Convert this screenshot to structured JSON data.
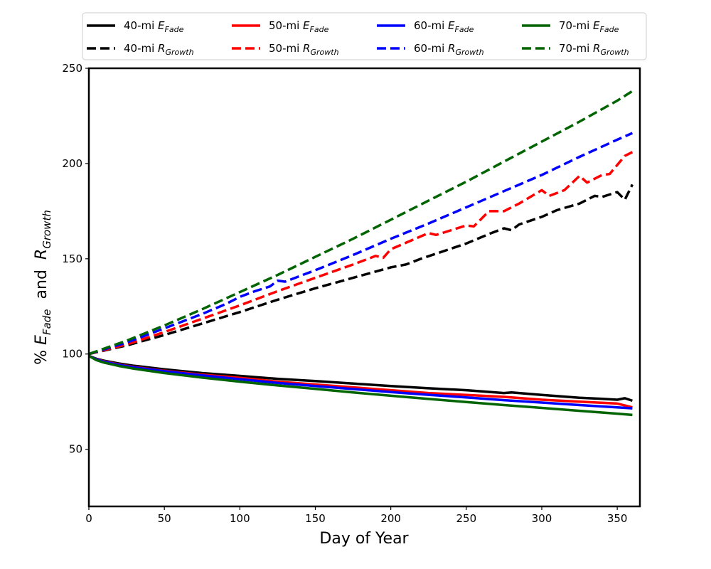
{
  "chart_data": {
    "type": "line",
    "xlabel": "Day of Year",
    "ylabel_parts": {
      "prefix": "% ",
      "e_main": "E",
      "e_sub": "Fade",
      "joiner": "  and  ",
      "r_main": "R",
      "r_sub": "Growth"
    },
    "xlim": [
      0,
      365
    ],
    "ylim": [
      20,
      250
    ],
    "x_ticks": [
      0,
      50,
      100,
      150,
      200,
      250,
      300,
      350
    ],
    "y_ticks": [
      50,
      100,
      150,
      200,
      250
    ],
    "grid": false,
    "legend_placement": "top-center, above plot, 4 columns",
    "series": [
      {
        "name": "40-mi E_Fade",
        "label_main": "40-mi ",
        "label_var": "E",
        "label_sub": "Fade",
        "color": "#000000",
        "dash": "solid",
        "x": [
          0,
          5,
          10,
          20,
          30,
          50,
          75,
          100,
          125,
          150,
          175,
          200,
          225,
          250,
          275,
          280,
          300,
          325,
          340,
          350,
          355,
          360
        ],
        "y": [
          99,
          97.5,
          96.5,
          95,
          93.8,
          92,
          90,
          88.5,
          87,
          85.8,
          84.5,
          83.2,
          82,
          81,
          79.5,
          79.8,
          78.5,
          77,
          76.5,
          76,
          76.8,
          75.5
        ]
      },
      {
        "name": "40-mi R_Growth",
        "label_main": "40-mi ",
        "label_var": "R",
        "label_sub": "Growth",
        "color": "#000000",
        "dash": "dashed",
        "x": [
          0,
          25,
          50,
          75,
          100,
          125,
          150,
          175,
          200,
          210,
          220,
          250,
          265,
          275,
          280,
          285,
          300,
          310,
          325,
          335,
          340,
          350,
          355,
          360
        ],
        "y": [
          100,
          104.5,
          110,
          116,
          122,
          128.5,
          134.5,
          140,
          145.5,
          147,
          150,
          158,
          163,
          166,
          165,
          168,
          172,
          175.5,
          179,
          183,
          182.5,
          185,
          181,
          189
        ]
      },
      {
        "name": "50-mi E_Fade",
        "label_main": "50-mi ",
        "label_var": "E",
        "label_sub": "Fade",
        "color": "#ff0000",
        "dash": "solid",
        "x": [
          0,
          5,
          10,
          20,
          30,
          50,
          75,
          100,
          125,
          150,
          175,
          200,
          225,
          250,
          275,
          300,
          325,
          350,
          360
        ],
        "y": [
          99,
          97.3,
          96.2,
          94.5,
          93.2,
          91.2,
          89.2,
          87.5,
          85.5,
          84,
          82.5,
          81,
          79.5,
          78.5,
          77.5,
          76,
          75,
          74,
          72
        ]
      },
      {
        "name": "50-mi R_Growth",
        "label_main": "50-mi ",
        "label_var": "R",
        "label_sub": "Growth",
        "color": "#ff0000",
        "dash": "dashed",
        "x": [
          0,
          25,
          50,
          75,
          100,
          125,
          150,
          175,
          190,
          195,
          200,
          225,
          230,
          250,
          255,
          265,
          275,
          285,
          300,
          305,
          315,
          325,
          330,
          340,
          345,
          355,
          360
        ],
        "y": [
          100,
          105,
          111.5,
          118.5,
          125.5,
          133,
          140,
          147,
          151.5,
          150.5,
          155,
          163.5,
          162.5,
          167.5,
          167,
          175,
          175,
          179,
          186,
          183,
          186,
          193.5,
          190,
          194,
          194.5,
          204,
          206
        ]
      },
      {
        "name": "60-mi E_Fade",
        "label_main": "60-mi ",
        "label_var": "E",
        "label_sub": "Fade",
        "color": "#0000ff",
        "dash": "solid",
        "x": [
          0,
          5,
          10,
          20,
          30,
          50,
          75,
          100,
          125,
          150,
          175,
          200,
          225,
          250,
          275,
          300,
          325,
          350,
          360
        ],
        "y": [
          99,
          97.2,
          96,
          94.3,
          93,
          91,
          88.8,
          86.8,
          84.8,
          83.2,
          81.6,
          80,
          78.6,
          77.2,
          75.8,
          74.5,
          73.2,
          72,
          71.5
        ]
      },
      {
        "name": "60-mi R_Growth",
        "label_main": "60-mi ",
        "label_var": "R",
        "label_sub": "Growth",
        "color": "#0000ff",
        "dash": "dashed",
        "x": [
          0,
          25,
          50,
          75,
          90,
          100,
          110,
          120,
          125,
          130,
          150,
          175,
          200,
          225,
          250,
          275,
          300,
          325,
          350,
          360
        ],
        "y": [
          100,
          106,
          113.5,
          121,
          126,
          130,
          133,
          135.5,
          138.5,
          138,
          144,
          152,
          160.5,
          168.5,
          177,
          185.5,
          194,
          203.5,
          212.5,
          216
        ]
      },
      {
        "name": "70-mi E_Fade",
        "label_main": "70-mi ",
        "label_var": "E",
        "label_sub": "Fade",
        "color": "#006400",
        "dash": "solid",
        "x": [
          0,
          5,
          10,
          20,
          30,
          50,
          75,
          100,
          125,
          150,
          175,
          200,
          225,
          250,
          275,
          300,
          325,
          350,
          360
        ],
        "y": [
          99,
          96.8,
          95.5,
          93.7,
          92.3,
          90,
          87.6,
          85.5,
          83.5,
          81.7,
          79.8,
          78.1,
          76.4,
          74.8,
          73.2,
          71.7,
          70.2,
          68.7,
          68
        ]
      },
      {
        "name": "70-mi R_Growth",
        "label_main": "70-mi ",
        "label_var": "R",
        "label_sub": "Growth",
        "color": "#006400",
        "dash": "dashed",
        "x": [
          0,
          25,
          50,
          75,
          100,
          125,
          150,
          175,
          200,
          225,
          250,
          275,
          300,
          325,
          350,
          360
        ],
        "y": [
          100,
          107,
          115,
          123.5,
          132.5,
          141.5,
          151,
          160.5,
          170.5,
          180.5,
          190.5,
          201,
          211.5,
          222,
          233,
          238
        ]
      }
    ]
  }
}
